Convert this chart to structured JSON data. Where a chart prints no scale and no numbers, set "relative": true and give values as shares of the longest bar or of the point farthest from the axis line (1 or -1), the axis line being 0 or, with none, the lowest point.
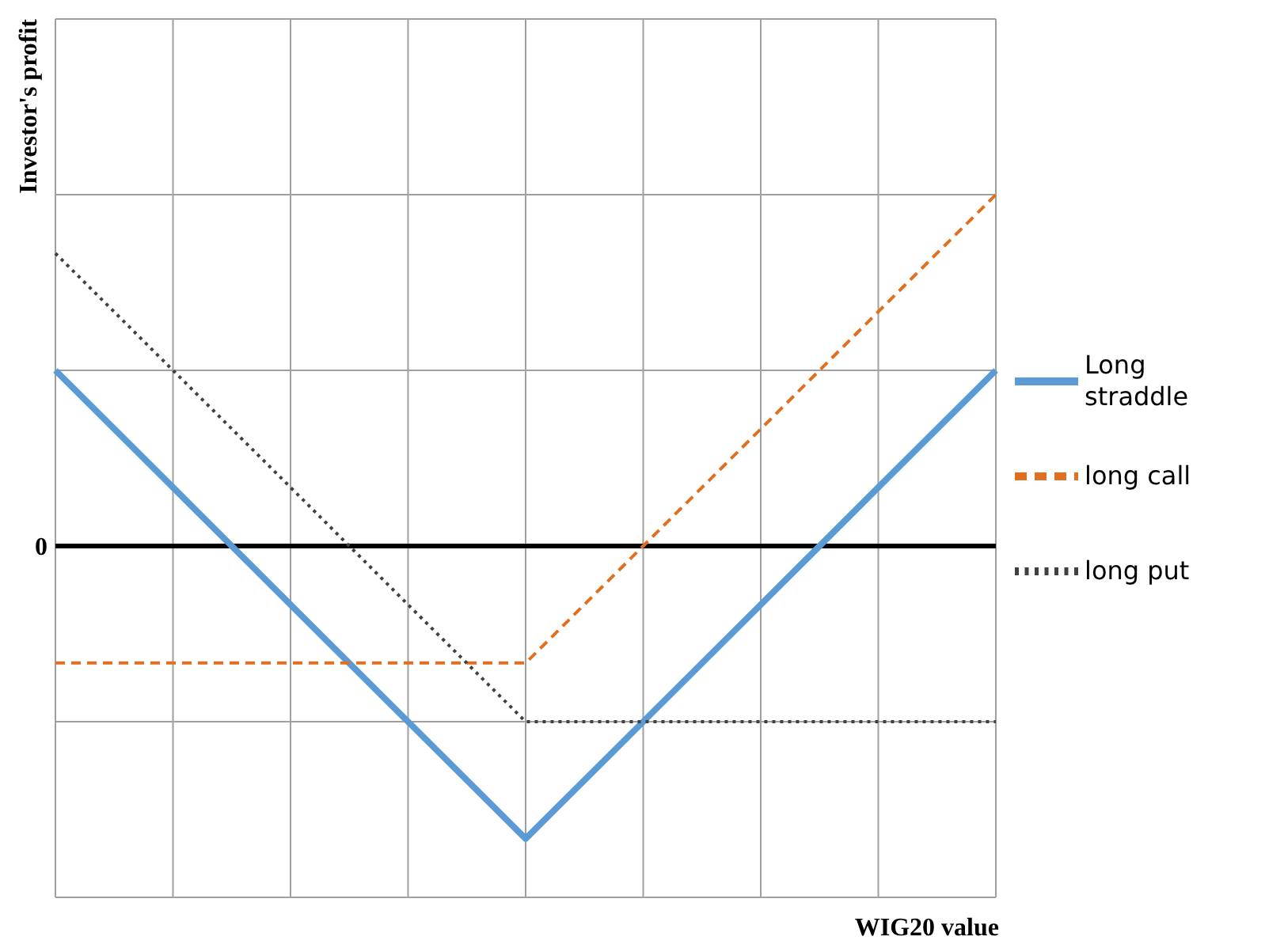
{
  "chart_data": {
    "type": "line",
    "relative": true,
    "xlabel": "WIG20 value",
    "ylabel": "Investor's profit",
    "categories": [
      null,
      null,
      null,
      null,
      null,
      null,
      null,
      null,
      null
    ],
    "series": [
      {
        "name": "Long straddle",
        "color": "#5b9bd5",
        "line_style": "solid",
        "values": [
          0.5,
          0.167,
          -0.167,
          -0.5,
          -0.833,
          -0.5,
          -0.167,
          0.167,
          0.5
        ]
      },
      {
        "name": "long call",
        "color": "#e07020",
        "line_style": "dashed",
        "values": [
          -0.333,
          -0.333,
          -0.333,
          -0.333,
          -0.333,
          0,
          0.333,
          0.667,
          1
        ]
      },
      {
        "name": "long put",
        "color": "#404040",
        "line_style": "dotted",
        "values": [
          0.833,
          0.5,
          0.167,
          -0.167,
          -0.5,
          -0.5,
          -0.5,
          -0.5,
          -0.5
        ]
      }
    ],
    "ref_lines": [
      {
        "axis": "y",
        "value": 0,
        "label": "0",
        "color": "#000000"
      }
    ],
    "grid": true,
    "legend": "right",
    "marker": "none"
  }
}
